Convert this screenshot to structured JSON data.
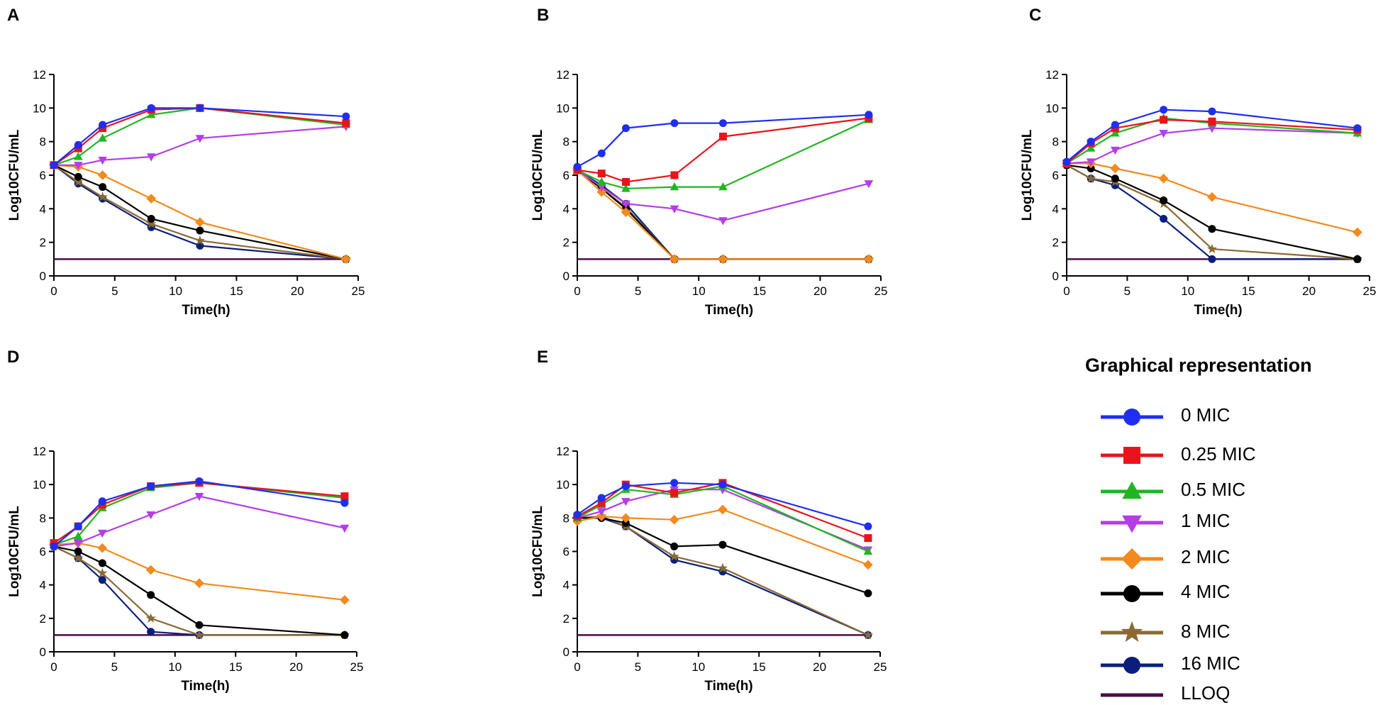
{
  "panel_labels": [
    "A",
    "B",
    "C",
    "D",
    "E"
  ],
  "styles": {
    "0 MIC": {
      "color": "#1f2ef0",
      "marker": "circle"
    },
    "0.25 MIC": {
      "color": "#e8141b",
      "marker": "square"
    },
    "0.5 MIC": {
      "color": "#22b522",
      "marker": "triangle-up"
    },
    "1 MIC": {
      "color": "#b43de8",
      "marker": "triangle-down"
    },
    "2 MIC": {
      "color": "#f28a1e",
      "marker": "diamond"
    },
    "4 MIC": {
      "color": "#000000",
      "marker": "circle"
    },
    "8 MIC": {
      "color": "#8a6a34",
      "marker": "star"
    },
    "16 MIC": {
      "color": "#0b1f7a",
      "marker": "circle"
    },
    "LLOQ": {
      "color": "#4a0d4a",
      "marker": "line"
    }
  },
  "legend": {
    "title": "Graphical representation",
    "items": [
      "0 MIC",
      "0.25 MIC",
      "0.5 MIC",
      "1 MIC",
      "2 MIC",
      "4 MIC",
      "8 MIC",
      "16 MIC",
      "LLOQ"
    ]
  },
  "chart_data": [
    {
      "panel": "A",
      "type": "line",
      "xlabel": "Time(h)",
      "ylabel": "Log10CFU/mL",
      "xlim": [
        0,
        25
      ],
      "ylim": [
        0,
        12
      ],
      "xticks": [
        0,
        5,
        10,
        15,
        20,
        25
      ],
      "yticks": [
        0,
        2,
        4,
        6,
        8,
        10,
        12
      ],
      "x": [
        0,
        2,
        4,
        8,
        12,
        24
      ],
      "lloq": 1,
      "series": [
        {
          "name": "0 MIC",
          "values": [
            6.6,
            7.8,
            9.0,
            10.0,
            10.0,
            9.5
          ]
        },
        {
          "name": "0.25 MIC",
          "values": [
            6.6,
            7.6,
            8.8,
            9.9,
            10.0,
            9.1
          ]
        },
        {
          "name": "0.5 MIC",
          "values": [
            6.6,
            7.1,
            8.2,
            9.6,
            10.0,
            9.0
          ]
        },
        {
          "name": "1 MIC",
          "values": [
            6.6,
            6.6,
            6.9,
            7.1,
            8.2,
            8.9
          ]
        },
        {
          "name": "2 MIC",
          "values": [
            6.6,
            6.5,
            6.0,
            4.6,
            3.2,
            1.0
          ]
        },
        {
          "name": "4 MIC",
          "values": [
            6.6,
            5.9,
            5.3,
            3.4,
            2.7,
            1.0
          ]
        },
        {
          "name": "8 MIC",
          "values": [
            6.6,
            5.6,
            4.7,
            3.1,
            2.1,
            1.0
          ]
        },
        {
          "name": "16 MIC",
          "values": [
            6.6,
            5.5,
            4.6,
            2.9,
            1.8,
            1.0
          ]
        }
      ]
    },
    {
      "panel": "B",
      "type": "line",
      "xlabel": "Time(h)",
      "ylabel": "Log10CFU/mL",
      "xlim": [
        0,
        25
      ],
      "ylim": [
        0,
        12
      ],
      "xticks": [
        0,
        5,
        10,
        15,
        20,
        25
      ],
      "yticks": [
        0,
        2,
        4,
        6,
        8,
        10,
        12
      ],
      "x": [
        0,
        2,
        4,
        8,
        12,
        24
      ],
      "lloq": 1,
      "series": [
        {
          "name": "0 MIC",
          "values": [
            6.5,
            7.3,
            8.8,
            9.1,
            9.1,
            9.6
          ]
        },
        {
          "name": "0.25 MIC",
          "values": [
            6.3,
            6.1,
            5.6,
            6.0,
            8.3,
            9.4
          ]
        },
        {
          "name": "0.5 MIC",
          "values": [
            6.3,
            5.6,
            5.2,
            5.3,
            5.3,
            9.3
          ]
        },
        {
          "name": "1 MIC",
          "values": [
            6.3,
            5.3,
            4.3,
            4.0,
            3.3,
            5.5
          ]
        },
        {
          "name": "2 MIC",
          "values": [
            6.3,
            5.0,
            3.8,
            1.0,
            1.0,
            1.0
          ]
        },
        {
          "name": "4 MIC",
          "values": [
            6.3,
            5.2,
            4.0,
            1.0,
            1.0,
            1.0
          ]
        },
        {
          "name": "8 MIC",
          "values": [
            6.3,
            5.2,
            4.1,
            1.0,
            1.0,
            1.0
          ]
        },
        {
          "name": "16 MIC",
          "values": [
            6.3,
            5.4,
            4.3,
            1.0,
            1.0,
            1.0
          ]
        }
      ]
    },
    {
      "panel": "C",
      "type": "line",
      "xlabel": "Time(h)",
      "ylabel": "Log10CFU/mL",
      "xlim": [
        0,
        25
      ],
      "ylim": [
        0,
        12
      ],
      "xticks": [
        0,
        5,
        10,
        15,
        20,
        25
      ],
      "yticks": [
        0,
        2,
        4,
        6,
        8,
        10,
        12
      ],
      "x": [
        0,
        2,
        4,
        8,
        12,
        24
      ],
      "lloq": 1,
      "series": [
        {
          "name": "0 MIC",
          "values": [
            6.8,
            8.0,
            9.0,
            9.9,
            9.8,
            8.8
          ]
        },
        {
          "name": "0.25 MIC",
          "values": [
            6.7,
            7.9,
            8.8,
            9.3,
            9.2,
            8.7
          ]
        },
        {
          "name": "0.5 MIC",
          "values": [
            6.7,
            7.6,
            8.5,
            9.4,
            9.1,
            8.5
          ]
        },
        {
          "name": "1 MIC",
          "values": [
            6.7,
            6.8,
            7.5,
            8.5,
            8.8,
            8.5
          ]
        },
        {
          "name": "2 MIC",
          "values": [
            6.7,
            6.7,
            6.4,
            5.8,
            4.7,
            2.6
          ]
        },
        {
          "name": "4 MIC",
          "values": [
            6.6,
            6.4,
            5.8,
            4.5,
            2.8,
            1.0
          ]
        },
        {
          "name": "8 MIC",
          "values": [
            6.6,
            5.8,
            5.6,
            4.3,
            1.6,
            1.0
          ]
        },
        {
          "name": "16 MIC",
          "values": [
            6.6,
            5.8,
            5.4,
            3.4,
            1.0,
            1.0
          ]
        }
      ]
    },
    {
      "panel": "D",
      "type": "line",
      "xlabel": "Time(h)",
      "ylabel": "Log10CFU/mL",
      "xlim": [
        0,
        25
      ],
      "ylim": [
        0,
        12
      ],
      "xticks": [
        0,
        5,
        10,
        15,
        20,
        25
      ],
      "yticks": [
        0,
        2,
        4,
        6,
        8,
        10,
        12
      ],
      "x": [
        0,
        2,
        4,
        8,
        12,
        24
      ],
      "lloq": 1,
      "series": [
        {
          "name": "0 MIC",
          "values": [
            6.3,
            7.5,
            9.0,
            9.9,
            10.2,
            8.9
          ]
        },
        {
          "name": "0.25 MIC",
          "values": [
            6.5,
            7.5,
            8.8,
            9.9,
            10.1,
            9.3
          ]
        },
        {
          "name": "0.5 MIC",
          "values": [
            6.4,
            6.9,
            8.6,
            9.8,
            10.1,
            9.2
          ]
        },
        {
          "name": "1 MIC",
          "values": [
            6.3,
            6.5,
            7.1,
            8.2,
            9.3,
            7.4
          ]
        },
        {
          "name": "2 MIC",
          "values": [
            6.4,
            6.5,
            6.2,
            4.9,
            4.1,
            3.1
          ]
        },
        {
          "name": "4 MIC",
          "values": [
            6.3,
            6.0,
            5.3,
            3.4,
            1.6,
            1.0
          ]
        },
        {
          "name": "8 MIC",
          "values": [
            6.3,
            5.6,
            4.7,
            2.0,
            1.0,
            1.0
          ]
        },
        {
          "name": "16 MIC",
          "values": [
            6.3,
            5.6,
            4.3,
            1.2,
            1.0,
            1.0
          ]
        }
      ]
    },
    {
      "panel": "E",
      "type": "line",
      "xlabel": "Time(h)",
      "ylabel": "Log10CFU/mL",
      "xlim": [
        0,
        25
      ],
      "ylim": [
        0,
        12
      ],
      "xticks": [
        0,
        5,
        10,
        15,
        20,
        25
      ],
      "yticks": [
        0,
        2,
        4,
        6,
        8,
        10,
        12
      ],
      "x": [
        0,
        2,
        4,
        8,
        12,
        24
      ],
      "lloq": 1,
      "series": [
        {
          "name": "0 MIC",
          "values": [
            8.2,
            9.2,
            9.9,
            10.1,
            10.0,
            7.5
          ]
        },
        {
          "name": "0.25 MIC",
          "values": [
            8.1,
            8.9,
            10.0,
            9.5,
            10.1,
            6.8
          ]
        },
        {
          "name": "0.5 MIC",
          "values": [
            8.0,
            8.8,
            9.7,
            9.4,
            9.9,
            6.0
          ]
        },
        {
          "name": "1 MIC",
          "values": [
            8.0,
            8.4,
            9.0,
            9.7,
            9.7,
            6.1
          ]
        },
        {
          "name": "2 MIC",
          "values": [
            7.8,
            8.1,
            8.0,
            7.9,
            8.5,
            5.2
          ]
        },
        {
          "name": "4 MIC",
          "values": [
            8.0,
            8.0,
            7.7,
            6.3,
            6.4,
            3.5
          ]
        },
        {
          "name": "8 MIC",
          "values": [
            8.0,
            8.1,
            7.5,
            5.7,
            5.0,
            1.0
          ]
        },
        {
          "name": "16 MIC",
          "values": [
            8.0,
            8.0,
            7.5,
            5.5,
            4.8,
            1.0
          ]
        }
      ]
    }
  ]
}
